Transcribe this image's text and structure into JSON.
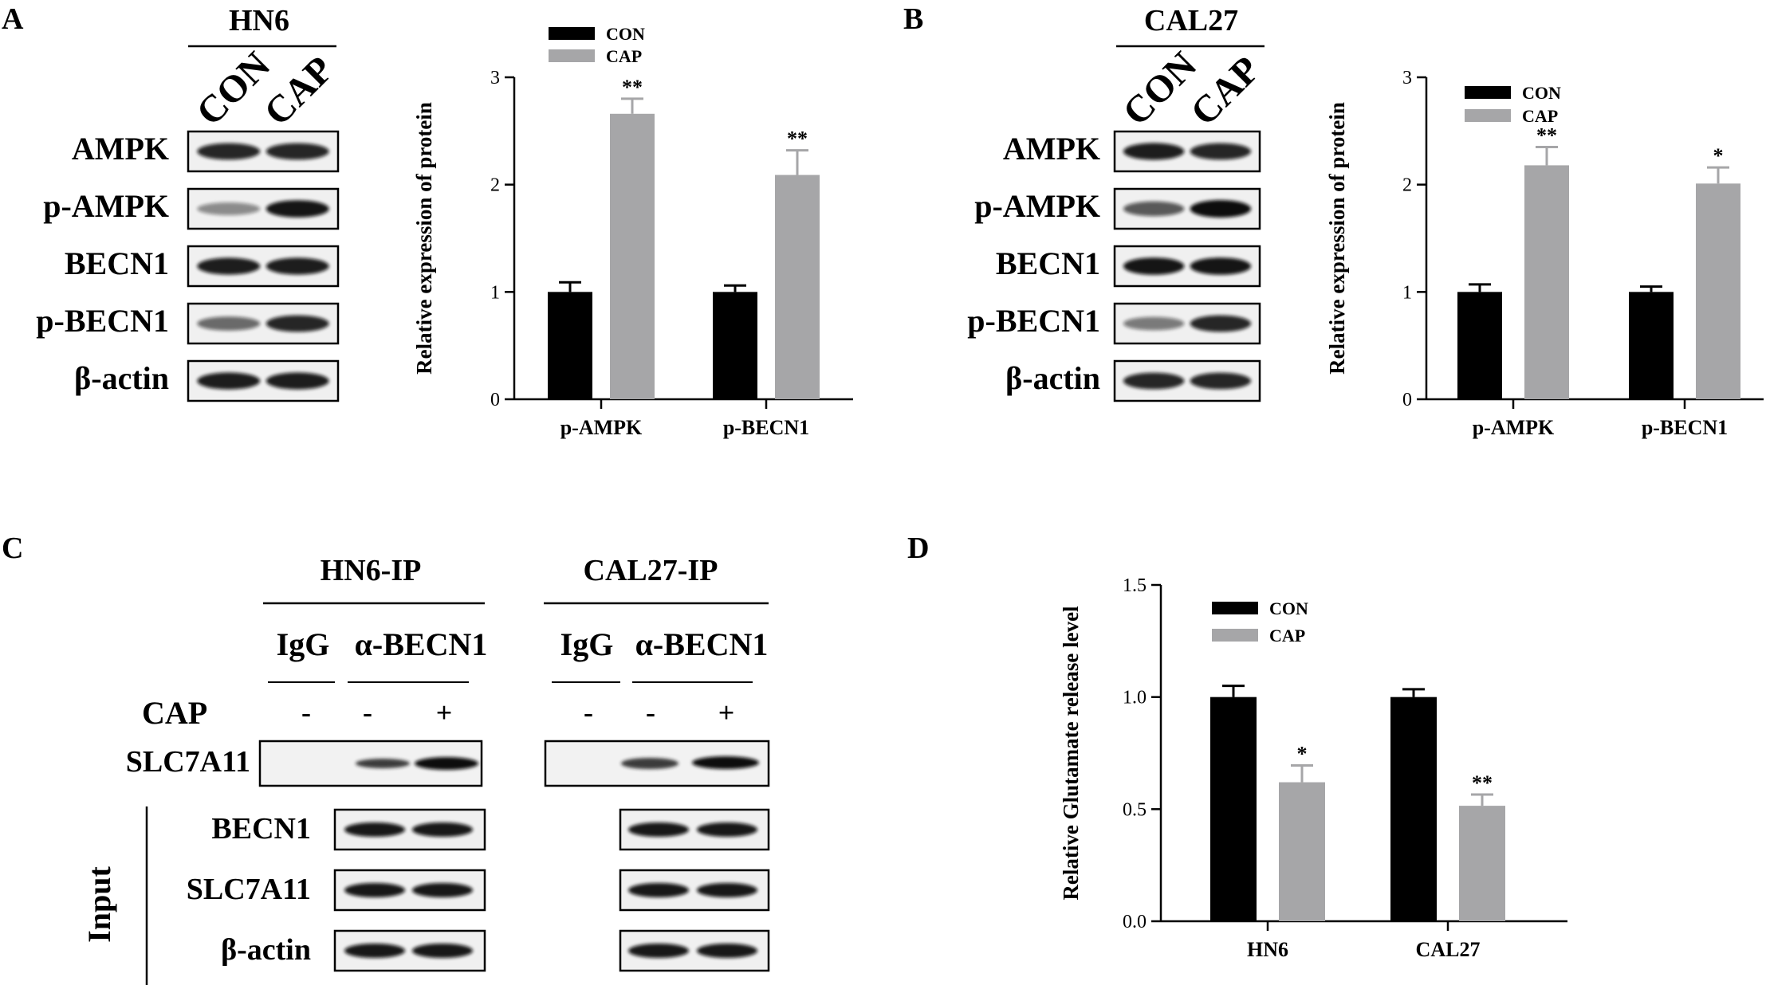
{
  "panels": {
    "A": {
      "letter": "A",
      "blot": {
        "title": "HN6",
        "columns": [
          "CON",
          "CAP"
        ],
        "rows": [
          "AMPK",
          "p-AMPK",
          "BECN1",
          "p-BECN1",
          "β-actin"
        ]
      }
    },
    "B": {
      "letter": "B",
      "blot": {
        "title": "CAL27",
        "columns": [
          "CON",
          "CAP"
        ],
        "rows": [
          "AMPK",
          "p-AMPK",
          "BECN1",
          "p-BECN1",
          "β-actin"
        ]
      }
    },
    "C": {
      "letter": "C",
      "group1_title": "HN6-IP",
      "group2_title": "CAL27-IP",
      "ip_labels": [
        "IgG",
        "α-BECN1",
        "IgG",
        "α-BECN1"
      ],
      "cap_label": "CAP",
      "cap_signs": [
        "-",
        "-",
        "+",
        "-",
        "-",
        "+"
      ],
      "ip_row": "SLC7A11",
      "input_label": "Input",
      "input_rows": [
        "BECN1",
        "SLC7A11",
        "β-actin"
      ]
    },
    "D": {
      "letter": "D"
    }
  },
  "colors": {
    "con": "#000000",
    "cap": "#a6a6a8"
  },
  "chart_data": [
    {
      "id": "A",
      "type": "bar",
      "categories": [
        "p-AMPK",
        "p-BECN1"
      ],
      "series": [
        {
          "name": "CON",
          "values": [
            1.0,
            1.0
          ],
          "errors": [
            0.09,
            0.06
          ]
        },
        {
          "name": "CAP",
          "values": [
            2.66,
            2.09
          ],
          "errors": [
            0.14,
            0.23
          ]
        }
      ],
      "significance": [
        [
          "",
          ""
        ],
        [
          "**",
          "**"
        ]
      ],
      "ylabel": "Relative expression of protein",
      "xlabel": "",
      "ylim": [
        0,
        3
      ],
      "yticks": [
        "0",
        "1",
        "2",
        "3"
      ],
      "legend": "top-left"
    },
    {
      "id": "B",
      "type": "bar",
      "categories": [
        "p-AMPK",
        "p-BECN1"
      ],
      "series": [
        {
          "name": "CON",
          "values": [
            1.0,
            1.0
          ],
          "errors": [
            0.07,
            0.05
          ]
        },
        {
          "name": "CAP",
          "values": [
            2.18,
            2.01
          ],
          "errors": [
            0.17,
            0.15
          ]
        }
      ],
      "significance": [
        [
          "",
          ""
        ],
        [
          "**",
          "*"
        ]
      ],
      "ylabel": "Relative expression of protein",
      "xlabel": "",
      "ylim": [
        0,
        3
      ],
      "yticks": [
        "0",
        "1",
        "2",
        "3"
      ],
      "legend": "top-left"
    },
    {
      "id": "D",
      "type": "bar",
      "categories": [
        "HN6",
        "CAL27"
      ],
      "series": [
        {
          "name": "CON",
          "values": [
            1.0,
            1.0
          ],
          "errors": [
            0.05,
            0.035
          ]
        },
        {
          "name": "CAP",
          "values": [
            0.62,
            0.515
          ],
          "errors": [
            0.075,
            0.05
          ]
        }
      ],
      "significance": [
        [
          "",
          ""
        ],
        [
          "*",
          "**"
        ]
      ],
      "ylabel": "Relative Glutamate release level",
      "xlabel": "",
      "ylim": [
        0,
        1.5
      ],
      "yticks": [
        "0.0",
        "0.5",
        "1.0",
        "1.5"
      ],
      "legend": "top-left"
    }
  ]
}
